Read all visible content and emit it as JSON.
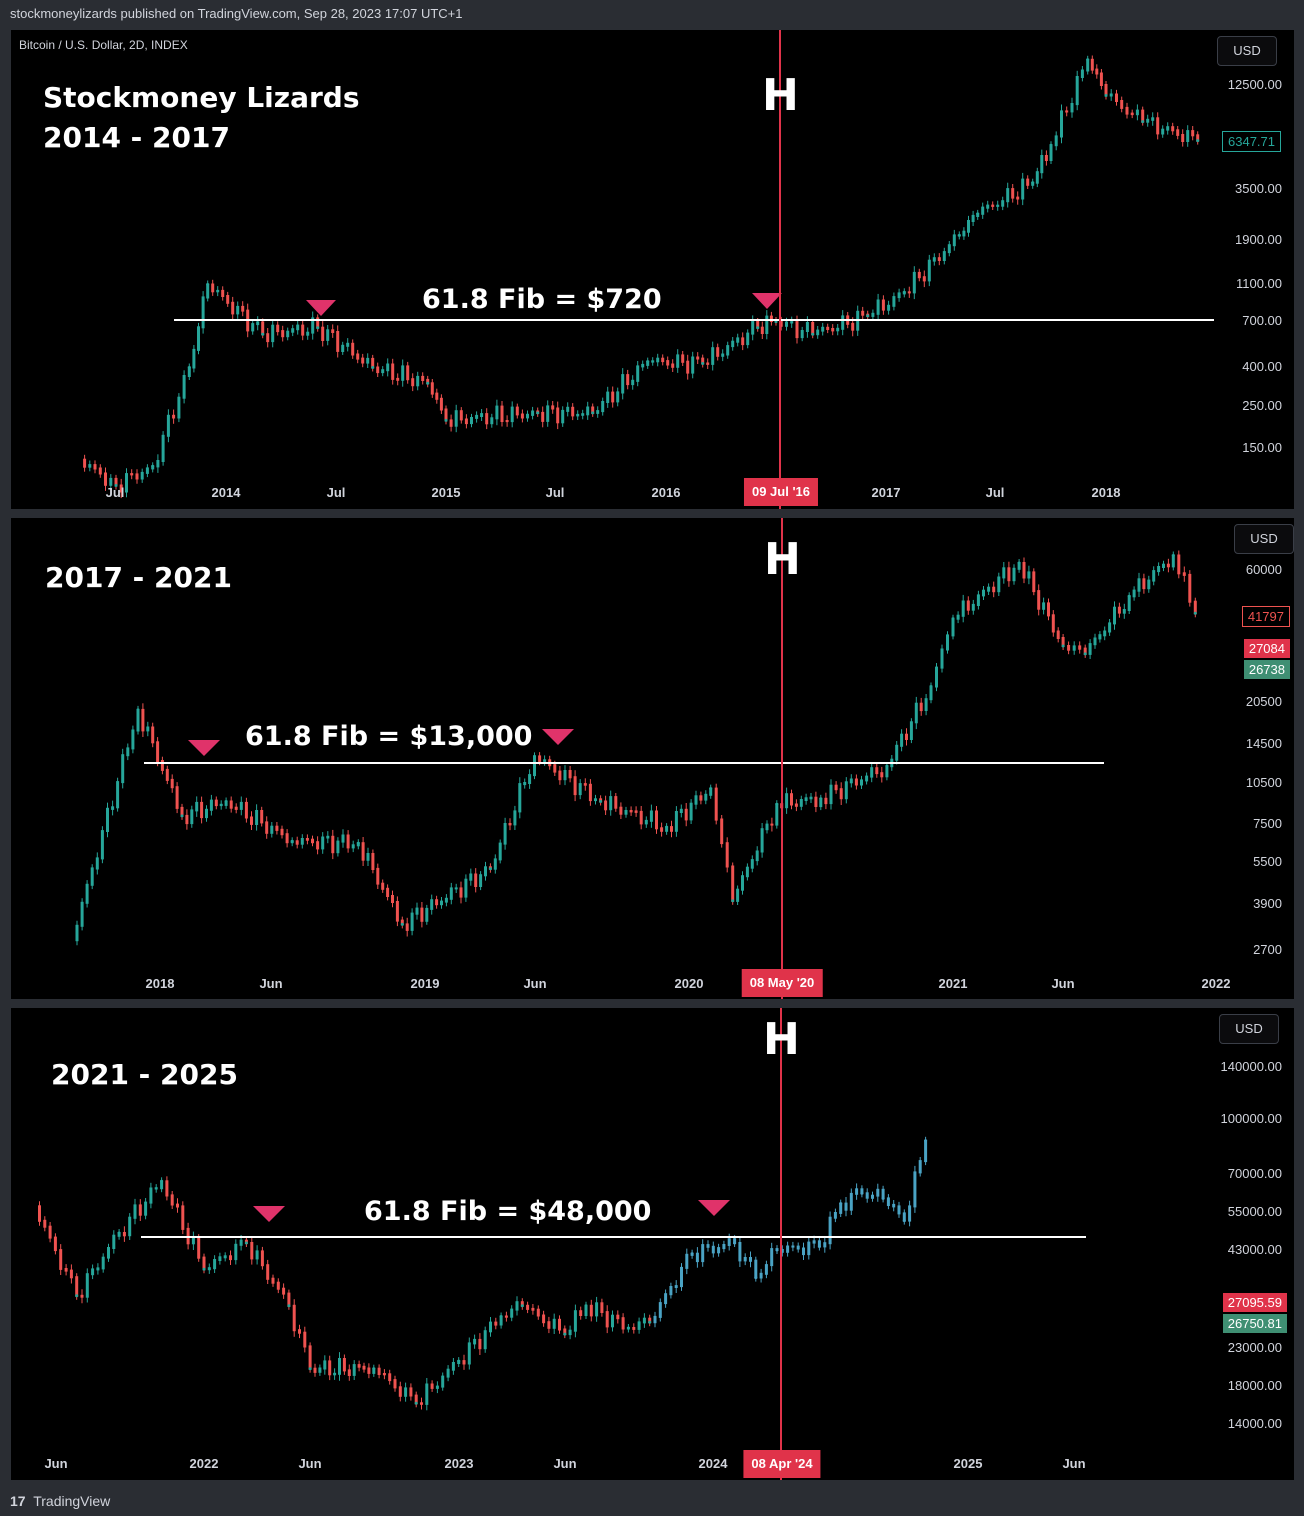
{
  "header": {
    "publisher_line": "stockmoneylizards published on TradingView.com, Sep 28, 2023 17:07 UTC+1"
  },
  "footer": {
    "logo_text": "TradingView",
    "logo_mark": "17"
  },
  "colors": {
    "halving_line": "#e0334a",
    "fib_line": "#ffffff",
    "marker": "#e0336a",
    "up": "#26a69a",
    "down": "#ef5350",
    "projection": "#4aa3c4"
  },
  "panels": [
    {
      "symbol": "Bitcoin / U.S. Dollar, 2D, INDEX",
      "currency": "USD",
      "title_lines": [
        "Stockmoney Lizards",
        "2014 - 2017"
      ],
      "halving_mark": "H",
      "halving_date": "09 Jul '16",
      "fib_label": "61.8 Fib = $720",
      "y_ticks": [
        "12500.00",
        "3500.00",
        "1900.00",
        "1100.00",
        "700.00",
        "400.00",
        "250.00",
        "150.00"
      ],
      "x_ticks": [
        "Jul",
        "2014",
        "Jul",
        "2015",
        "Jul",
        "2016",
        "2017",
        "Jul",
        "2018"
      ],
      "price_badges": [
        {
          "text": "6347.71",
          "style": "out-green"
        }
      ]
    },
    {
      "currency": "USD",
      "title_lines": [
        "2017 - 2021"
      ],
      "halving_mark": "H",
      "halving_date": "08 May '20",
      "fib_label": "61.8 Fib = $13,000",
      "y_ticks": [
        "60000",
        "20500",
        "14500",
        "10500",
        "7500",
        "5500",
        "3900",
        "2700"
      ],
      "x_ticks": [
        "2018",
        "Jun",
        "2019",
        "Jun",
        "2020",
        "2021",
        "Jun",
        "2022"
      ],
      "price_badges": [
        {
          "text": "41797",
          "style": "out-red"
        },
        {
          "text": "27084",
          "style": "red"
        },
        {
          "text": "26738",
          "style": "green"
        }
      ]
    },
    {
      "currency": "USD",
      "title_lines": [
        "2021 - 2025"
      ],
      "halving_mark": "H",
      "halving_date": "08 Apr '24",
      "fib_label": "61.8 Fib = $48,000",
      "y_ticks": [
        "140000.00",
        "100000.00",
        "70000.00",
        "55000.00",
        "43000.00",
        "23000.00",
        "18000.00",
        "14000.00"
      ],
      "x_ticks": [
        "Jun",
        "2022",
        "Jun",
        "2023",
        "Jun",
        "2024",
        "2025",
        "Jun"
      ],
      "price_badges": [
        {
          "text": "27095.59",
          "style": "red"
        },
        {
          "text": "26750.81",
          "style": "green"
        }
      ]
    }
  ],
  "chart_data": [
    {
      "type": "line",
      "title": "2014 - 2017",
      "scale": "log",
      "series": [
        {
          "x": [
            "2013-05",
            "2013-07",
            "2013-09",
            "2013-11",
            "2013-12",
            "2014-03",
            "2014-06",
            "2014-09",
            "2014-12",
            "2015-01",
            "2015-06",
            "2015-09",
            "2015-12",
            "2016-03",
            "2016-06",
            "2016-07",
            "2016-09",
            "2016-12",
            "2017-02",
            "2017-05",
            "2017-06",
            "2017-09",
            "2017-10",
            "2017-12",
            "2018-01",
            "2018-03",
            "2018-06"
          ],
          "values": [
            130,
            95,
            120,
            400,
            1100,
            600,
            650,
            400,
            330,
            210,
            230,
            230,
            430,
            420,
            650,
            700,
            600,
            750,
            1000,
            2000,
            2600,
            3800,
            6000,
            17000,
            11000,
            8000,
            6347.71
          ]
        }
      ],
      "fib_level": 720,
      "halving": "2016-07-09",
      "markers": [
        "2014-06",
        "2016-07"
      ]
    },
    {
      "type": "line",
      "title": "2017 - 2021",
      "scale": "log",
      "series": [
        {
          "x": [
            "2017-09",
            "2017-12",
            "2018-02",
            "2018-04",
            "2018-07",
            "2018-10",
            "2018-12",
            "2019-04",
            "2019-06",
            "2019-09",
            "2019-12",
            "2020-02",
            "2020-03",
            "2020-05",
            "2020-07",
            "2020-10",
            "2020-12",
            "2021-01",
            "2021-04",
            "2021-06",
            "2021-07",
            "2021-09",
            "2021-11",
            "2021-12"
          ],
          "values": [
            2900,
            19000,
            8000,
            9000,
            6500,
            6400,
            3300,
            5200,
            13000,
            9000,
            7300,
            10000,
            4000,
            8800,
            9200,
            12000,
            23000,
            40000,
            63000,
            32000,
            30000,
            48000,
            67000,
            41797
          ]
        }
      ],
      "fib_level": 13000,
      "halving": "2020-05-08",
      "markers": [
        "2018-03",
        "2019-06"
      ]
    },
    {
      "type": "line",
      "title": "2021 - 2025",
      "scale": "log",
      "series": [
        {
          "name": "",
          "x": [
            "2021-05",
            "2021-07",
            "2021-09",
            "2021-11",
            "2022-01",
            "2022-03",
            "2022-05",
            "2022-06",
            "2022-09",
            "2022-11",
            "2023-01",
            "2023-03",
            "2023-04",
            "2023-06",
            "2023-07",
            "2023-09",
            "2023-10"
          ],
          "values": [
            57000,
            32000,
            48000,
            67000,
            38000,
            45000,
            30000,
            20000,
            20000,
            16000,
            21000,
            28000,
            30000,
            25000,
            30000,
            26000,
            27000
          ]
        },
        {
          "name": "",
          "x": [
            "2023-10",
            "2023-12",
            "2024-02",
            "2024-03",
            "2024-04",
            "2024-06",
            "2024-07",
            "2024-08",
            "2024-09",
            "2024-10",
            "2024-11"
          ],
          "values": [
            27000,
            42000,
            45000,
            36000,
            43000,
            44000,
            58000,
            62000,
            60000,
            52000,
            87000
          ]
        }
      ],
      "fib_level": 48000,
      "halving": "2024-04-08",
      "markers": [
        "2022-03",
        "2024-01"
      ]
    }
  ]
}
